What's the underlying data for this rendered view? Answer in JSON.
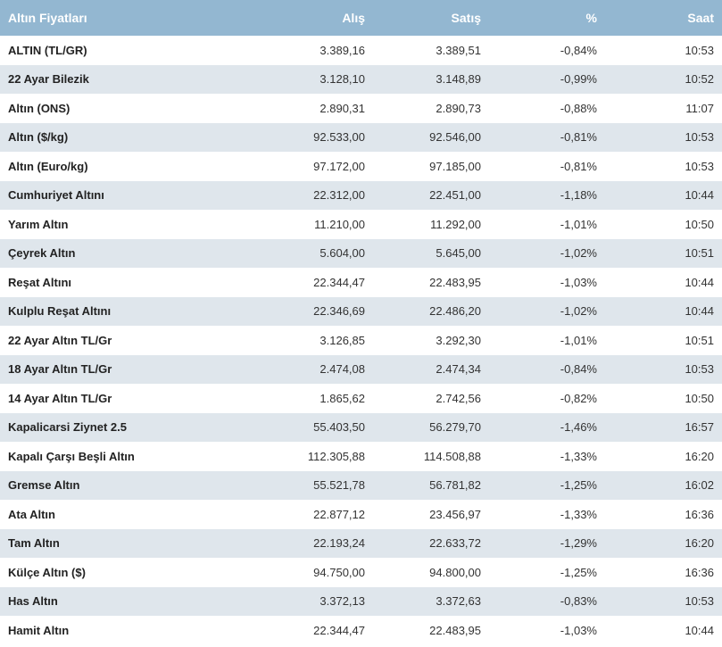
{
  "table": {
    "headers": {
      "name": "Altın Fiyatları",
      "alis": "Alış",
      "satis": "Satış",
      "pct": "%",
      "saat": "Saat"
    },
    "rows": [
      {
        "name": "ALTIN (TL/GR)",
        "alis": "3.389,16",
        "satis": "3.389,51",
        "pct": "-0,84%",
        "saat": "10:53"
      },
      {
        "name": "22 Ayar Bilezik",
        "alis": "3.128,10",
        "satis": "3.148,89",
        "pct": "-0,99%",
        "saat": "10:52"
      },
      {
        "name": "Altın (ONS)",
        "alis": "2.890,31",
        "satis": "2.890,73",
        "pct": "-0,88%",
        "saat": "11:07"
      },
      {
        "name": "Altın ($/kg)",
        "alis": "92.533,00",
        "satis": "92.546,00",
        "pct": "-0,81%",
        "saat": "10:53"
      },
      {
        "name": "Altın (Euro/kg)",
        "alis": "97.172,00",
        "satis": "97.185,00",
        "pct": "-0,81%",
        "saat": "10:53"
      },
      {
        "name": "Cumhuriyet Altını",
        "alis": "22.312,00",
        "satis": "22.451,00",
        "pct": "-1,18%",
        "saat": "10:44"
      },
      {
        "name": "Yarım Altın",
        "alis": "11.210,00",
        "satis": "11.292,00",
        "pct": "-1,01%",
        "saat": "10:50"
      },
      {
        "name": "Çeyrek Altın",
        "alis": "5.604,00",
        "satis": "5.645,00",
        "pct": "-1,02%",
        "saat": "10:51"
      },
      {
        "name": "Reşat Altını",
        "alis": "22.344,47",
        "satis": "22.483,95",
        "pct": "-1,03%",
        "saat": "10:44"
      },
      {
        "name": "Kulplu Reşat Altını",
        "alis": "22.346,69",
        "satis": "22.486,20",
        "pct": "-1,02%",
        "saat": "10:44"
      },
      {
        "name": "22 Ayar Altın TL/Gr",
        "alis": "3.126,85",
        "satis": "3.292,30",
        "pct": "-1,01%",
        "saat": "10:51"
      },
      {
        "name": "18 Ayar Altın TL/Gr",
        "alis": "2.474,08",
        "satis": "2.474,34",
        "pct": "-0,84%",
        "saat": "10:53"
      },
      {
        "name": "14 Ayar Altın TL/Gr",
        "alis": "1.865,62",
        "satis": "2.742,56",
        "pct": "-0,82%",
        "saat": "10:50"
      },
      {
        "name": "Kapalicarsi Ziynet 2.5",
        "alis": "55.403,50",
        "satis": "56.279,70",
        "pct": "-1,46%",
        "saat": "16:57"
      },
      {
        "name": "Kapalı Çarşı Beşli Altın",
        "alis": "112.305,88",
        "satis": "114.508,88",
        "pct": "-1,33%",
        "saat": "16:20"
      },
      {
        "name": "Gremse Altın",
        "alis": "55.521,78",
        "satis": "56.781,82",
        "pct": "-1,25%",
        "saat": "16:02"
      },
      {
        "name": "Ata Altın",
        "alis": "22.877,12",
        "satis": "23.456,97",
        "pct": "-1,33%",
        "saat": "16:36"
      },
      {
        "name": "Tam Altın",
        "alis": "22.193,24",
        "satis": "22.633,72",
        "pct": "-1,29%",
        "saat": "16:20"
      },
      {
        "name": "Külçe Altın ($)",
        "alis": "94.750,00",
        "satis": "94.800,00",
        "pct": "-1,25%",
        "saat": "16:36"
      },
      {
        "name": "Has Altın",
        "alis": "3.372,13",
        "satis": "3.372,63",
        "pct": "-0,83%",
        "saat": "10:53"
      },
      {
        "name": "Hamit Altın",
        "alis": "22.344,47",
        "satis": "22.483,95",
        "pct": "-1,03%",
        "saat": "10:44"
      }
    ]
  }
}
